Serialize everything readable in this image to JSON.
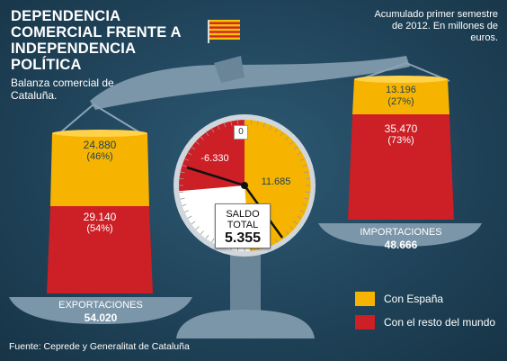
{
  "title": "DEPENDENCIA COMERCIAL FRENTE A INDEPENDENCIA POLÍTICA",
  "subtitle": "Balanza comercial de Cataluña.",
  "note": "Acumulado primer semestre de 2012. En millones de euros.",
  "source": "Fuente: Cepredе y Generalitat de Cataluña",
  "colors": {
    "espana": "#f6b400",
    "resto": "#cc1f26",
    "background": "#1f4258",
    "scale_metal": "#7a96a8"
  },
  "chart_data": [
    {
      "type": "bar",
      "bars": [
        {
          "label": "EXPORTACIONES",
          "total": "54.020",
          "segments": [
            {
              "series": "Con España",
              "value": 24880,
              "value_text": "24.880",
              "pct_text": "(46%)"
            },
            {
              "series": "Con el resto del mundo",
              "value": 29140,
              "value_text": "29.140",
              "pct_text": "(54%)"
            }
          ]
        },
        {
          "label": "IMPORTACIONES",
          "total": "48.666",
          "segments": [
            {
              "series": "Con España",
              "value": 13196,
              "value_text": "13.196",
              "pct_text": "(27%)"
            },
            {
              "series": "Con el resto del mundo",
              "value": 35470,
              "value_text": "35.470",
              "pct_text": "(73%)"
            }
          ]
        }
      ],
      "legend": [
        {
          "name": "Con España",
          "color": "#f6b400"
        },
        {
          "name": "Con el resto del mundo",
          "color": "#cc1f26"
        }
      ]
    },
    {
      "type": "pie",
      "title": "SALDO TOTAL",
      "total_text": "5.355",
      "slices": [
        {
          "label": "11.685",
          "series": "Con España",
          "value": 11685,
          "color": "#f6b400"
        },
        {
          "label": "-6.330",
          "series": "Con el resto del mundo",
          "value": -6330,
          "color": "#cc1f26"
        }
      ],
      "zero_label": "0"
    }
  ]
}
